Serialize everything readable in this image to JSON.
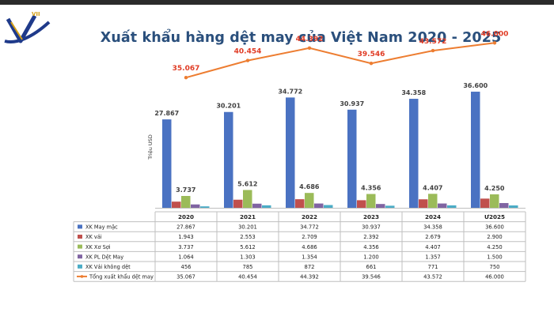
{
  "page": {
    "title": "Xuất khẩu hàng dệt may của Việt Nam 2020 - 2025"
  },
  "logo": {
    "text": "VII"
  },
  "colors": {
    "may_mac": "#4a72c2",
    "vai": "#c0504d",
    "xo_soi": "#9bbb59",
    "pl_det_may": "#8064a2",
    "vai_khong_det": "#4bacc6",
    "tong": "#ed7d31",
    "tong_label": "#e03b24",
    "slide_bg": "#ffffff",
    "border_dark": "#2b2b2b"
  },
  "chart_data": {
    "type": "bar",
    "title": "Xuất khẩu hàng dệt may của Việt Nam 2020 - 2025",
    "ylabel": "Triệu USD",
    "categories": [
      "2020",
      "2021",
      "2022",
      "2023",
      "2024",
      "Ư2025"
    ],
    "ylim": [
      0,
      46000
    ],
    "grid": false,
    "legend": "table-bottom",
    "series": [
      {
        "name": "XK May mặc",
        "type": "bar",
        "values": [
          27867,
          30201,
          34772,
          30937,
          34358,
          36600
        ],
        "labels": [
          "27.867",
          "30.201",
          "34.772",
          "30.937",
          "34.358",
          "36.600"
        ]
      },
      {
        "name": "XK vải",
        "type": "bar",
        "values": [
          1943,
          2553,
          2709,
          2392,
          2679,
          2900
        ],
        "labels": [
          "1.943",
          "2.553",
          "2.709",
          "2.392",
          "2.679",
          "2.900"
        ]
      },
      {
        "name": "XK Xơ Sợi",
        "type": "bar",
        "values": [
          3737,
          5612,
          4686,
          4356,
          4407,
          4250
        ],
        "labels": [
          "3.737",
          "5.612",
          "4.686",
          "4.356",
          "4.407",
          "4.250"
        ]
      },
      {
        "name": "XK PL Dệt May",
        "type": "bar",
        "values": [
          1064,
          1303,
          1354,
          1200,
          1357,
          1500
        ],
        "labels": [
          "1.064",
          "1.303",
          "1.354",
          "1.200",
          "1.357",
          "1.500"
        ]
      },
      {
        "name": "XK Vải không dệt",
        "type": "bar",
        "values": [
          456,
          785,
          872,
          661,
          771,
          750
        ],
        "labels": [
          "456",
          "785",
          "872",
          "661",
          "771",
          "750"
        ]
      },
      {
        "name": "Tổng xuất khẩu dệt may",
        "type": "line",
        "values": [
          35067,
          40454,
          44392,
          39546,
          43572,
          46000
        ],
        "labels": [
          "35.067",
          "40.454",
          "44.392",
          "39.546",
          "43.572",
          "46.000"
        ]
      }
    ]
  }
}
